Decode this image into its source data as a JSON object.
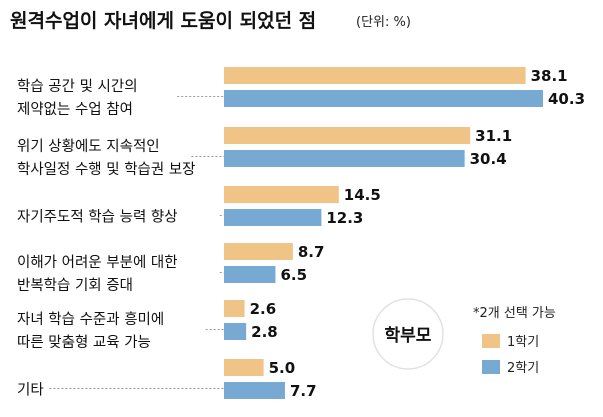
{
  "chart_data": {
    "type": "bar",
    "orientation": "horizontal",
    "title": "원격수업이 자녀에게 도움이 되었던 점",
    "unit": "(단위: %)",
    "group_label": "학부모",
    "note": "*2개 선택 가능",
    "categories": [
      [
        "학습 공간 및 시간의",
        "제약없는 수업 참여"
      ],
      [
        "위기 상황에도 지속적인",
        "학사일정 수행 및 학습권 보장"
      ],
      [
        "자기주도적 학습 능력 향상"
      ],
      [
        "이해가 어려운 부분에 대한",
        "반복학습 기회 증대"
      ],
      [
        "자녀 학습 수준과 흥미에",
        "따른 맞춤형 교육 가능"
      ],
      [
        "기타"
      ]
    ],
    "series": [
      {
        "name": "1학기",
        "color": "#F0C386",
        "values": [
          38.1,
          31.1,
          14.5,
          8.7,
          2.6,
          5.0
        ],
        "labels": [
          "38.1",
          "31.1",
          "14.5",
          "8.7",
          "2.6",
          "5.0"
        ]
      },
      {
        "name": "2학기",
        "color": "#77A9D3",
        "values": [
          40.3,
          30.4,
          12.3,
          6.5,
          2.8,
          7.7
        ],
        "labels": [
          "40.3",
          "30.4",
          "12.3",
          "6.5",
          "2.8",
          "7.7"
        ]
      }
    ],
    "legend_position": "bottom-right",
    "grid": false
  }
}
